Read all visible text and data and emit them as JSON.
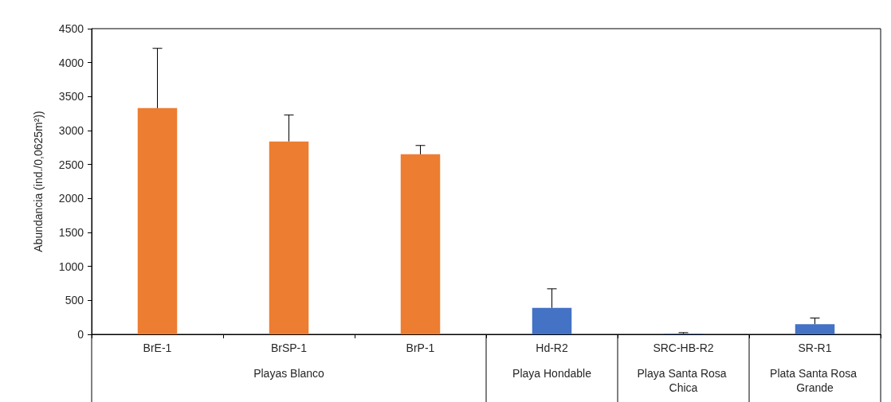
{
  "chart_data": {
    "type": "bar",
    "ylabel": "Abundancia (ind./0,0625m²))",
    "categories": [
      "BrE-1",
      "BrSP-1",
      "BrP-1",
      "Hd-R2",
      "SRC-HB-R2",
      "SR-R1"
    ],
    "values": [
      3330,
      2840,
      2650,
      390,
      10,
      150
    ],
    "colors": [
      "#ed7d31",
      "#ed7d31",
      "#ed7d31",
      "#4472c4",
      "#4472c4",
      "#4472c4"
    ],
    "errors": [
      [
        3330,
        4210
      ],
      [
        2840,
        3230
      ],
      [
        2650,
        2780
      ],
      [
        390,
        670
      ],
      [
        10,
        25
      ],
      [
        150,
        240
      ]
    ],
    "ylim": [
      0,
      4500
    ],
    "yticks": [
      0,
      500,
      1000,
      1500,
      2000,
      2500,
      3000,
      3500,
      4000,
      4500
    ],
    "grid": false,
    "annotations": [
      "Playas Blanco",
      "Playa Hondable",
      "Playa Santa Rosa Chica",
      "Plata Santa Rosa Grande"
    ]
  }
}
